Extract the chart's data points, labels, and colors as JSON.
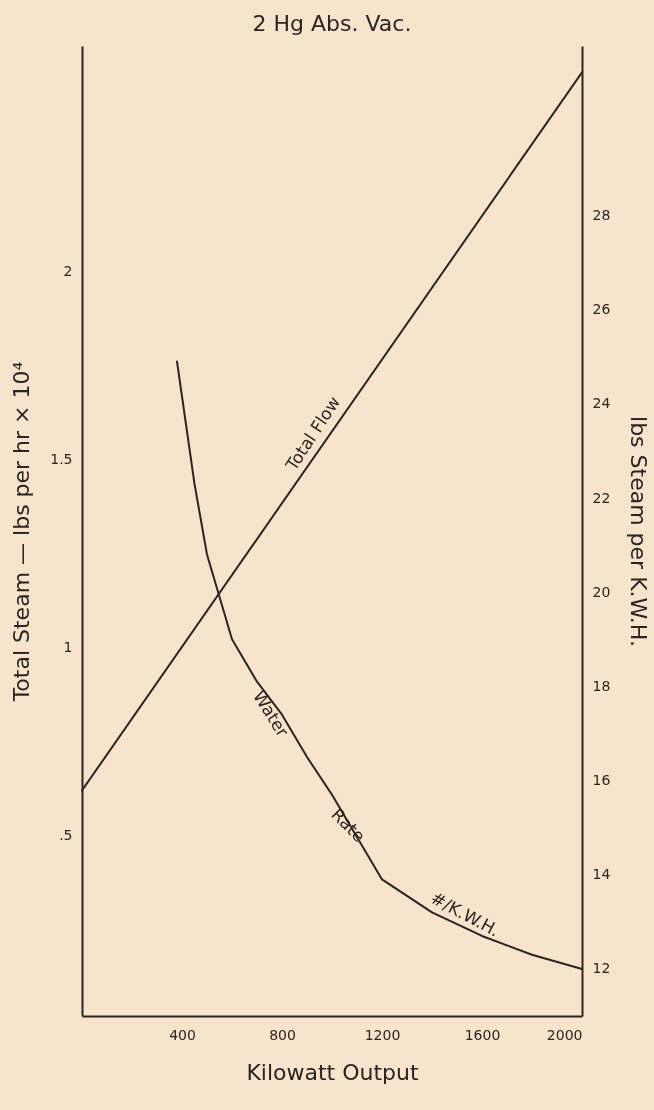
{
  "chart_data": {
    "type": "line",
    "title": "2 Hg Abs. Vac.",
    "xlabel": "Kilowatt Output",
    "ylabel": "Total Steam — lbs per hr × 10⁴",
    "y2label": "lbs Steam per K.W.H.",
    "xlim": [
      0,
      2000
    ],
    "xticks": [
      400,
      800,
      1200,
      1600,
      2000
    ],
    "ylim": [
      0.02,
      2.6
    ],
    "yticks": [
      {
        "value": 0.5,
        "label": ".5"
      },
      1,
      1.5,
      2
    ],
    "y2lim": [
      11,
      31.6
    ],
    "y2ticks": [
      12,
      14,
      16,
      18,
      20,
      22,
      24,
      26,
      28
    ],
    "grid": false,
    "marker": "none",
    "line_style": "solid",
    "series": [
      {
        "color": "#2b2420",
        "x": [
          0,
          2000
        ],
        "values": [
          0.62,
          2.53
        ]
      },
      {
        "color": "#2b2420",
        "axis": "y2",
        "x": [
          380,
          450,
          500,
          600,
          700,
          800,
          900,
          1000,
          1200,
          1400,
          1600,
          1800,
          2000
        ],
        "values": [
          24.9,
          22.3,
          20.8,
          19.0,
          18.1,
          17.4,
          16.5,
          15.7,
          13.9,
          13.2,
          12.7,
          12.3,
          12.0
        ]
      }
    ],
    "annotations": [
      "Total Flow",
      "Water",
      "Rate",
      "#/K.W.H."
    ]
  }
}
